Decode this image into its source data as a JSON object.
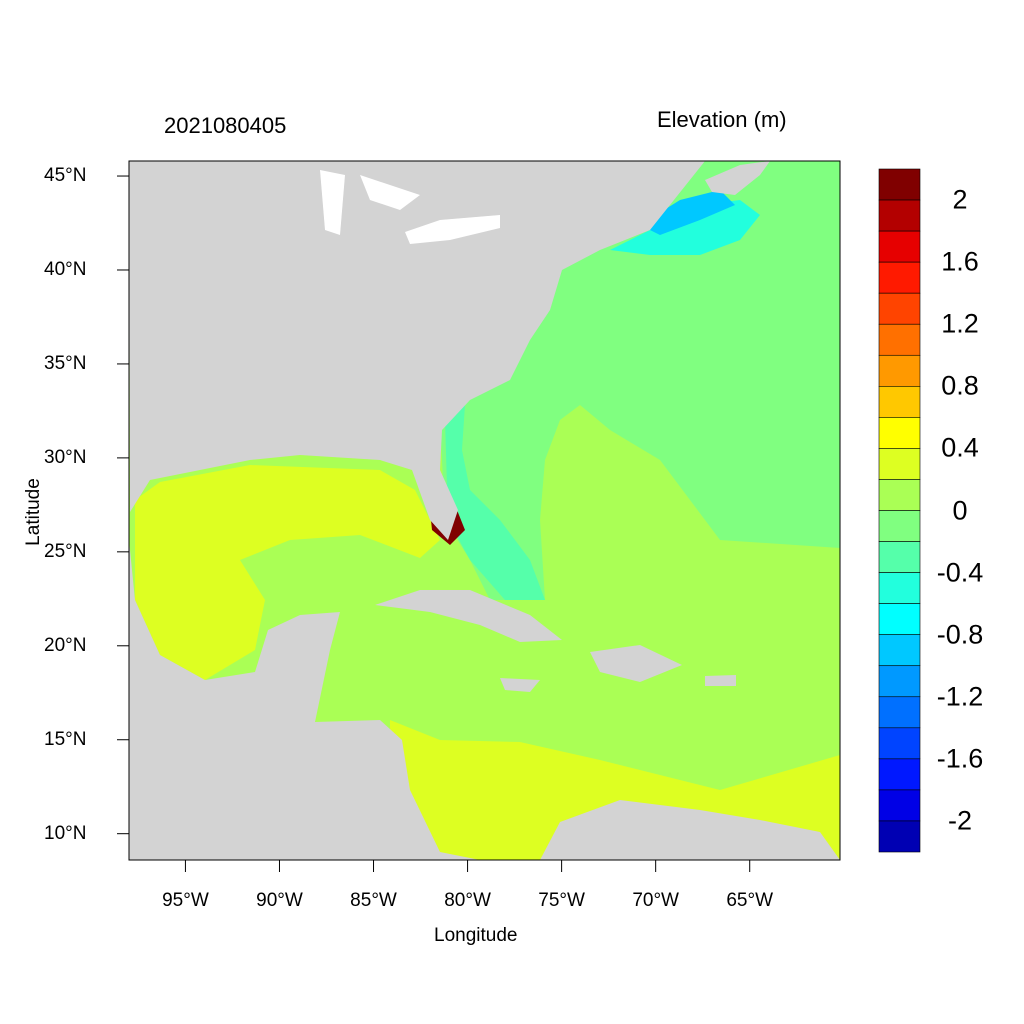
{
  "title_left": "2021080405",
  "title_right": "Elevation (m)",
  "x_axis": {
    "label": "Longitude",
    "ticks": [
      "95°W",
      "90°W",
      "85°W",
      "80°W",
      "75°W",
      "70°W",
      "65°W"
    ],
    "tick_values": [
      -95,
      -90,
      -85,
      -80,
      -75,
      -70,
      -65
    ]
  },
  "y_axis": {
    "label": "Latitude",
    "ticks": [
      "45°N",
      "40°N",
      "35°N",
      "30°N",
      "25°N",
      "20°N",
      "15°N",
      "10°N"
    ],
    "tick_values": [
      45,
      40,
      35,
      30,
      25,
      20,
      15,
      10
    ]
  },
  "map_extent": {
    "lon": [
      -98.0,
      -60.2
    ],
    "lat": [
      8.6,
      45.8
    ]
  },
  "colors": {
    "land": "#d3d3d3",
    "lakes": "#ffffff"
  },
  "colorbar": {
    "levels": [
      -2.2,
      -2.0,
      -1.8,
      -1.6,
      -1.4,
      -1.2,
      -1.0,
      -0.8,
      -0.6,
      -0.4,
      -0.2,
      0,
      0.2,
      0.4,
      0.6,
      0.8,
      1.0,
      1.2,
      1.4,
      1.6,
      1.8,
      2.0,
      2.2
    ],
    "colors_top_to_bottom": [
      "#800000",
      "#b30000",
      "#e60000",
      "#ff1a00",
      "#ff4400",
      "#ff7000",
      "#ff9900",
      "#ffc800",
      "#ffff00",
      "#ddff22",
      "#aaff55",
      "#80ff80",
      "#55ffaa",
      "#22ffdd",
      "#00ffff",
      "#00c8ff",
      "#0099ff",
      "#0070ff",
      "#0044ff",
      "#0018ff",
      "#0000e6",
      "#0000b3"
    ],
    "labels": [
      "2",
      "1.6",
      "1.2",
      "0.8",
      "0.4",
      "0",
      "-0.4",
      "-0.8",
      "-1.2",
      "-1.6",
      "-2"
    ]
  }
}
